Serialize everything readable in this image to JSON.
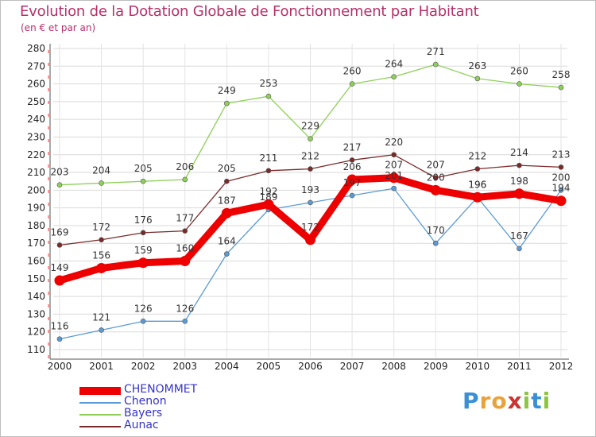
{
  "title": "Evolution de la Dotation Globale de Fonctionnement par Habitant",
  "subtitle": "(en € et par an)",
  "logo": {
    "text": "Proxiti",
    "letters": [
      "P",
      "r",
      "o",
      "x",
      "i",
      "t",
      "i"
    ],
    "colors": [
      "#3a8fd6",
      "#e8a23a",
      "#e8a23a",
      "#cc3333",
      "#8cc63e",
      "#3a8fd6",
      "#8cc63e"
    ]
  },
  "chart_data": {
    "type": "line",
    "title": "Evolution de la Dotation Globale de Fonctionnement par Habitant",
    "subtitle": "(en € et par an)",
    "xlabel": "",
    "ylabel": "",
    "ylim": [
      110,
      280
    ],
    "yticks": [
      110,
      120,
      130,
      140,
      150,
      160,
      170,
      180,
      190,
      200,
      210,
      220,
      230,
      240,
      250,
      260,
      270,
      280
    ],
    "categories": [
      "2000",
      "2001",
      "2002",
      "2003",
      "2004",
      "2005",
      "2006",
      "2007",
      "2008",
      "2009",
      "2010",
      "2011",
      "2012"
    ],
    "grid": true,
    "legend_position": "bottom-left",
    "series": [
      {
        "name": "CHENOMMET",
        "color": "#ee0000",
        "emphasis": true,
        "values": [
          149,
          156,
          159,
          160,
          187,
          192,
          172,
          206,
          207,
          200,
          196,
          198,
          194
        ]
      },
      {
        "name": "Chenon",
        "color": "#5b9bd5",
        "values": [
          116,
          121,
          126,
          126,
          164,
          189,
          193,
          197,
          201,
          170,
          196,
          167,
          200
        ]
      },
      {
        "name": "Bayers",
        "color": "#8fd05a",
        "values": [
          203,
          204,
          205,
          206,
          249,
          253,
          229,
          260,
          264,
          271,
          263,
          260,
          258
        ]
      },
      {
        "name": "Aunac",
        "color": "#7a2a2a",
        "values": [
          169,
          172,
          176,
          177,
          205,
          211,
          212,
          217,
          220,
          207,
          212,
          214,
          213
        ]
      }
    ]
  }
}
